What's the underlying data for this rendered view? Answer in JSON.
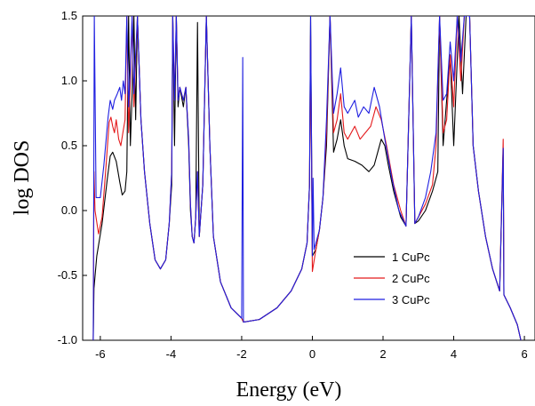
{
  "chart_data": {
    "type": "line",
    "title": "",
    "xlabel": "Energy (eV)",
    "ylabel": "log DOS",
    "xlim": [
      -6.5,
      6.3
    ],
    "ylim": [
      -1.0,
      1.5
    ],
    "xticks": [
      -6,
      -4,
      -2,
      0,
      2,
      4,
      6
    ],
    "xtick_labels": [
      "-6",
      "-4",
      "-2",
      "0",
      "2",
      "4",
      "6"
    ],
    "yticks": [
      -1.0,
      -0.5,
      0.0,
      0.5,
      1.0,
      1.5
    ],
    "ytick_labels": [
      "-1.0",
      "-0.5",
      "0.0",
      "0.5",
      "1.0",
      "1.5"
    ],
    "grid": false,
    "legend_position": "lower-right",
    "series": [
      {
        "name": "1 CuPc",
        "color": "#000000",
        "points": [
          [
            -6.2,
            -1.0
          ],
          [
            -6.18,
            -0.6
          ],
          [
            -6.1,
            -0.35
          ],
          [
            -5.95,
            -0.1
          ],
          [
            -5.8,
            0.25
          ],
          [
            -5.72,
            0.42
          ],
          [
            -5.65,
            0.45
          ],
          [
            -5.55,
            0.38
          ],
          [
            -5.45,
            0.22
          ],
          [
            -5.38,
            0.12
          ],
          [
            -5.3,
            0.15
          ],
          [
            -5.25,
            0.3
          ],
          [
            -5.2,
            1.5
          ],
          [
            -5.15,
            0.5
          ],
          [
            -5.1,
            0.9
          ],
          [
            -5.05,
            1.5
          ],
          [
            -5.0,
            0.7
          ],
          [
            -4.95,
            1.5
          ],
          [
            -4.85,
            0.7
          ],
          [
            -4.75,
            0.3
          ],
          [
            -4.6,
            -0.1
          ],
          [
            -4.45,
            -0.38
          ],
          [
            -4.3,
            -0.45
          ],
          [
            -4.15,
            -0.38
          ],
          [
            -4.05,
            -0.1
          ],
          [
            -3.98,
            0.2
          ],
          [
            -3.95,
            1.5
          ],
          [
            -3.9,
            0.5
          ],
          [
            -3.85,
            1.5
          ],
          [
            -3.8,
            0.8
          ],
          [
            -3.75,
            0.95
          ],
          [
            -3.65,
            0.8
          ],
          [
            -3.58,
            0.95
          ],
          [
            -3.5,
            0.5
          ],
          [
            -3.45,
            0.0
          ],
          [
            -3.4,
            -0.2
          ],
          [
            -3.35,
            -0.25
          ],
          [
            -3.3,
            -0.05
          ],
          [
            -3.25,
            1.45
          ],
          [
            -3.2,
            -0.2
          ],
          [
            -3.1,
            0.2
          ],
          [
            -3.0,
            1.5
          ],
          [
            -2.9,
            0.5
          ],
          [
            -2.8,
            -0.2
          ],
          [
            -2.6,
            -0.55
          ],
          [
            -2.3,
            -0.75
          ],
          [
            -2.0,
            -0.83
          ],
          [
            -1.95,
            -0.86
          ],
          [
            -1.5,
            -0.84
          ],
          [
            -1.0,
            -0.75
          ],
          [
            -0.6,
            -0.62
          ],
          [
            -0.3,
            -0.45
          ],
          [
            -0.15,
            -0.25
          ],
          [
            -0.08,
            0.2
          ],
          [
            -0.05,
            1.5
          ],
          [
            0.0,
            -0.35
          ],
          [
            0.1,
            -0.3
          ],
          [
            0.2,
            -0.15
          ],
          [
            0.3,
            0.1
          ],
          [
            0.4,
            0.5
          ],
          [
            0.5,
            1.5
          ],
          [
            0.6,
            0.45
          ],
          [
            0.7,
            0.55
          ],
          [
            0.8,
            0.7
          ],
          [
            0.9,
            0.5
          ],
          [
            1.0,
            0.4
          ],
          [
            1.2,
            0.38
          ],
          [
            1.4,
            0.35
          ],
          [
            1.6,
            0.3
          ],
          [
            1.75,
            0.35
          ],
          [
            1.85,
            0.45
          ],
          [
            1.95,
            0.55
          ],
          [
            2.05,
            0.5
          ],
          [
            2.15,
            0.35
          ],
          [
            2.3,
            0.15
          ],
          [
            2.5,
            -0.05
          ],
          [
            2.65,
            -0.12
          ],
          [
            2.8,
            1.5
          ],
          [
            2.9,
            -0.1
          ],
          [
            3.0,
            -0.08
          ],
          [
            3.2,
            0.0
          ],
          [
            3.4,
            0.15
          ],
          [
            3.55,
            0.3
          ],
          [
            3.6,
            1.5
          ],
          [
            3.7,
            0.5
          ],
          [
            3.9,
            1.2
          ],
          [
            4.0,
            0.5
          ],
          [
            4.15,
            1.5
          ],
          [
            4.25,
            0.9
          ],
          [
            4.35,
            1.5
          ],
          [
            4.45,
            1.5
          ],
          [
            4.55,
            0.5
          ],
          [
            4.7,
            0.15
          ],
          [
            4.9,
            -0.2
          ],
          [
            5.1,
            -0.45
          ],
          [
            5.3,
            -0.62
          ],
          [
            5.4,
            0.48
          ],
          [
            5.42,
            -0.65
          ],
          [
            5.6,
            -0.75
          ],
          [
            5.8,
            -0.88
          ],
          [
            5.9,
            -1.0
          ]
        ]
      },
      {
        "name": "2 CuPc",
        "color": "#e41a1c",
        "points": [
          [
            -6.2,
            -1.0
          ],
          [
            -6.18,
            0.3
          ],
          [
            -6.15,
            0.0
          ],
          [
            -6.05,
            -0.18
          ],
          [
            -5.95,
            -0.05
          ],
          [
            -5.85,
            0.3
          ],
          [
            -5.75,
            0.68
          ],
          [
            -5.7,
            0.72
          ],
          [
            -5.65,
            0.65
          ],
          [
            -5.6,
            0.6
          ],
          [
            -5.55,
            0.7
          ],
          [
            -5.48,
            0.55
          ],
          [
            -5.42,
            0.5
          ],
          [
            -5.35,
            0.62
          ],
          [
            -5.3,
            0.7
          ],
          [
            -5.25,
            1.5
          ],
          [
            -5.2,
            0.6
          ],
          [
            -5.15,
            1.0
          ],
          [
            -5.1,
            1.5
          ],
          [
            -5.05,
            0.8
          ],
          [
            -4.95,
            1.5
          ],
          [
            -4.85,
            0.7
          ],
          [
            -4.75,
            0.3
          ],
          [
            -4.6,
            -0.1
          ],
          [
            -4.45,
            -0.38
          ],
          [
            -4.3,
            -0.45
          ],
          [
            -4.15,
            -0.38
          ],
          [
            -4.05,
            -0.1
          ],
          [
            -3.98,
            0.3
          ],
          [
            -3.95,
            1.5
          ],
          [
            -3.9,
            0.85
          ],
          [
            -3.85,
            1.5
          ],
          [
            -3.8,
            0.85
          ],
          [
            -3.75,
            0.95
          ],
          [
            -3.65,
            0.85
          ],
          [
            -3.58,
            0.95
          ],
          [
            -3.5,
            0.55
          ],
          [
            -3.45,
            0.05
          ],
          [
            -3.4,
            -0.2
          ],
          [
            -3.35,
            -0.25
          ],
          [
            -3.3,
            -0.05
          ],
          [
            -3.25,
            0.3
          ],
          [
            -3.2,
            -0.2
          ],
          [
            -3.1,
            0.2
          ],
          [
            -3.0,
            1.5
          ],
          [
            -2.9,
            0.5
          ],
          [
            -2.8,
            -0.2
          ],
          [
            -2.6,
            -0.55
          ],
          [
            -2.3,
            -0.75
          ],
          [
            -2.0,
            -0.83
          ],
          [
            -1.95,
            -0.86
          ],
          [
            -1.5,
            -0.84
          ],
          [
            -1.0,
            -0.75
          ],
          [
            -0.6,
            -0.62
          ],
          [
            -0.3,
            -0.45
          ],
          [
            -0.15,
            -0.25
          ],
          [
            -0.08,
            0.2
          ],
          [
            -0.05,
            1.35
          ],
          [
            0.0,
            -0.47
          ],
          [
            0.1,
            -0.3
          ],
          [
            0.2,
            -0.15
          ],
          [
            0.3,
            0.1
          ],
          [
            0.4,
            0.6
          ],
          [
            0.5,
            1.5
          ],
          [
            0.6,
            0.6
          ],
          [
            0.7,
            0.7
          ],
          [
            0.8,
            0.9
          ],
          [
            0.9,
            0.6
          ],
          [
            1.0,
            0.55
          ],
          [
            1.2,
            0.65
          ],
          [
            1.35,
            0.55
          ],
          [
            1.5,
            0.6
          ],
          [
            1.65,
            0.65
          ],
          [
            1.8,
            0.8
          ],
          [
            1.95,
            0.7
          ],
          [
            2.1,
            0.5
          ],
          [
            2.3,
            0.2
          ],
          [
            2.5,
            0.0
          ],
          [
            2.65,
            -0.12
          ],
          [
            2.8,
            1.5
          ],
          [
            2.9,
            -0.1
          ],
          [
            3.0,
            -0.05
          ],
          [
            3.2,
            0.05
          ],
          [
            3.4,
            0.2
          ],
          [
            3.5,
            0.5
          ],
          [
            3.6,
            1.5
          ],
          [
            3.7,
            0.6
          ],
          [
            3.8,
            0.7
          ],
          [
            3.9,
            1.2
          ],
          [
            4.0,
            0.8
          ],
          [
            4.1,
            1.5
          ],
          [
            4.2,
            1.0
          ],
          [
            4.3,
            1.5
          ],
          [
            4.45,
            1.5
          ],
          [
            4.55,
            0.5
          ],
          [
            4.7,
            0.15
          ],
          [
            4.9,
            -0.2
          ],
          [
            5.1,
            -0.45
          ],
          [
            5.3,
            -0.62
          ],
          [
            5.4,
            0.55
          ],
          [
            5.42,
            -0.65
          ],
          [
            5.6,
            -0.75
          ],
          [
            5.8,
            -0.88
          ],
          [
            5.9,
            -1.0
          ]
        ]
      },
      {
        "name": "3 CuPc",
        "color": "#1f1fe0",
        "points": [
          [
            -6.2,
            -1.0
          ],
          [
            -6.17,
            1.5
          ],
          [
            -6.12,
            0.1
          ],
          [
            -6.0,
            0.1
          ],
          [
            -5.9,
            0.35
          ],
          [
            -5.78,
            0.72
          ],
          [
            -5.72,
            0.85
          ],
          [
            -5.65,
            0.78
          ],
          [
            -5.6,
            0.85
          ],
          [
            -5.52,
            0.9
          ],
          [
            -5.45,
            0.95
          ],
          [
            -5.4,
            0.85
          ],
          [
            -5.35,
            1.0
          ],
          [
            -5.3,
            0.9
          ],
          [
            -5.25,
            1.5
          ],
          [
            -5.2,
            0.8
          ],
          [
            -5.15,
            1.1
          ],
          [
            -5.1,
            1.5
          ],
          [
            -5.05,
            0.9
          ],
          [
            -4.95,
            1.5
          ],
          [
            -4.85,
            0.7
          ],
          [
            -4.75,
            0.3
          ],
          [
            -4.6,
            -0.1
          ],
          [
            -4.45,
            -0.38
          ],
          [
            -4.3,
            -0.45
          ],
          [
            -4.15,
            -0.38
          ],
          [
            -4.05,
            -0.1
          ],
          [
            -3.98,
            0.3
          ],
          [
            -3.95,
            1.5
          ],
          [
            -3.9,
            0.85
          ],
          [
            -3.85,
            1.5
          ],
          [
            -3.8,
            0.85
          ],
          [
            -3.75,
            0.95
          ],
          [
            -3.65,
            0.85
          ],
          [
            -3.58,
            0.95
          ],
          [
            -3.5,
            0.55
          ],
          [
            -3.45,
            0.05
          ],
          [
            -3.4,
            -0.2
          ],
          [
            -3.35,
            -0.25
          ],
          [
            -3.3,
            -0.05
          ],
          [
            -3.25,
            0.3
          ],
          [
            -3.2,
            -0.2
          ],
          [
            -3.1,
            0.2
          ],
          [
            -3.0,
            1.5
          ],
          [
            -2.9,
            0.5
          ],
          [
            -2.8,
            -0.2
          ],
          [
            -2.6,
            -0.55
          ],
          [
            -2.3,
            -0.75
          ],
          [
            -2.0,
            -0.83
          ],
          [
            -1.97,
            1.18
          ],
          [
            -1.95,
            -0.86
          ],
          [
            -1.5,
            -0.84
          ],
          [
            -1.0,
            -0.75
          ],
          [
            -0.6,
            -0.62
          ],
          [
            -0.3,
            -0.45
          ],
          [
            -0.15,
            -0.25
          ],
          [
            -0.08,
            0.2
          ],
          [
            -0.05,
            1.5
          ],
          [
            0.0,
            -0.35
          ],
          [
            0.02,
            0.25
          ],
          [
            0.05,
            -0.3
          ],
          [
            0.2,
            -0.15
          ],
          [
            0.3,
            0.1
          ],
          [
            0.4,
            0.7
          ],
          [
            0.5,
            1.5
          ],
          [
            0.6,
            0.75
          ],
          [
            0.7,
            0.9
          ],
          [
            0.8,
            1.1
          ],
          [
            0.9,
            0.8
          ],
          [
            1.0,
            0.75
          ],
          [
            1.2,
            0.85
          ],
          [
            1.3,
            0.72
          ],
          [
            1.45,
            0.8
          ],
          [
            1.6,
            0.75
          ],
          [
            1.75,
            0.95
          ],
          [
            1.9,
            0.8
          ],
          [
            2.05,
            0.55
          ],
          [
            2.25,
            0.25
          ],
          [
            2.45,
            0.0
          ],
          [
            2.65,
            -0.12
          ],
          [
            2.8,
            1.5
          ],
          [
            2.9,
            -0.1
          ],
          [
            3.0,
            -0.05
          ],
          [
            3.2,
            0.1
          ],
          [
            3.35,
            0.3
          ],
          [
            3.5,
            0.6
          ],
          [
            3.6,
            1.5
          ],
          [
            3.7,
            0.85
          ],
          [
            3.8,
            0.9
          ],
          [
            3.9,
            1.3
          ],
          [
            4.0,
            1.0
          ],
          [
            4.1,
            1.5
          ],
          [
            4.2,
            1.15
          ],
          [
            4.3,
            1.5
          ],
          [
            4.45,
            1.5
          ],
          [
            4.55,
            0.5
          ],
          [
            4.7,
            0.15
          ],
          [
            4.9,
            -0.2
          ],
          [
            5.1,
            -0.45
          ],
          [
            5.3,
            -0.62
          ],
          [
            5.4,
            0.48
          ],
          [
            5.42,
            -0.65
          ],
          [
            5.6,
            -0.75
          ],
          [
            5.8,
            -0.88
          ],
          [
            5.9,
            -1.0
          ]
        ]
      }
    ]
  }
}
